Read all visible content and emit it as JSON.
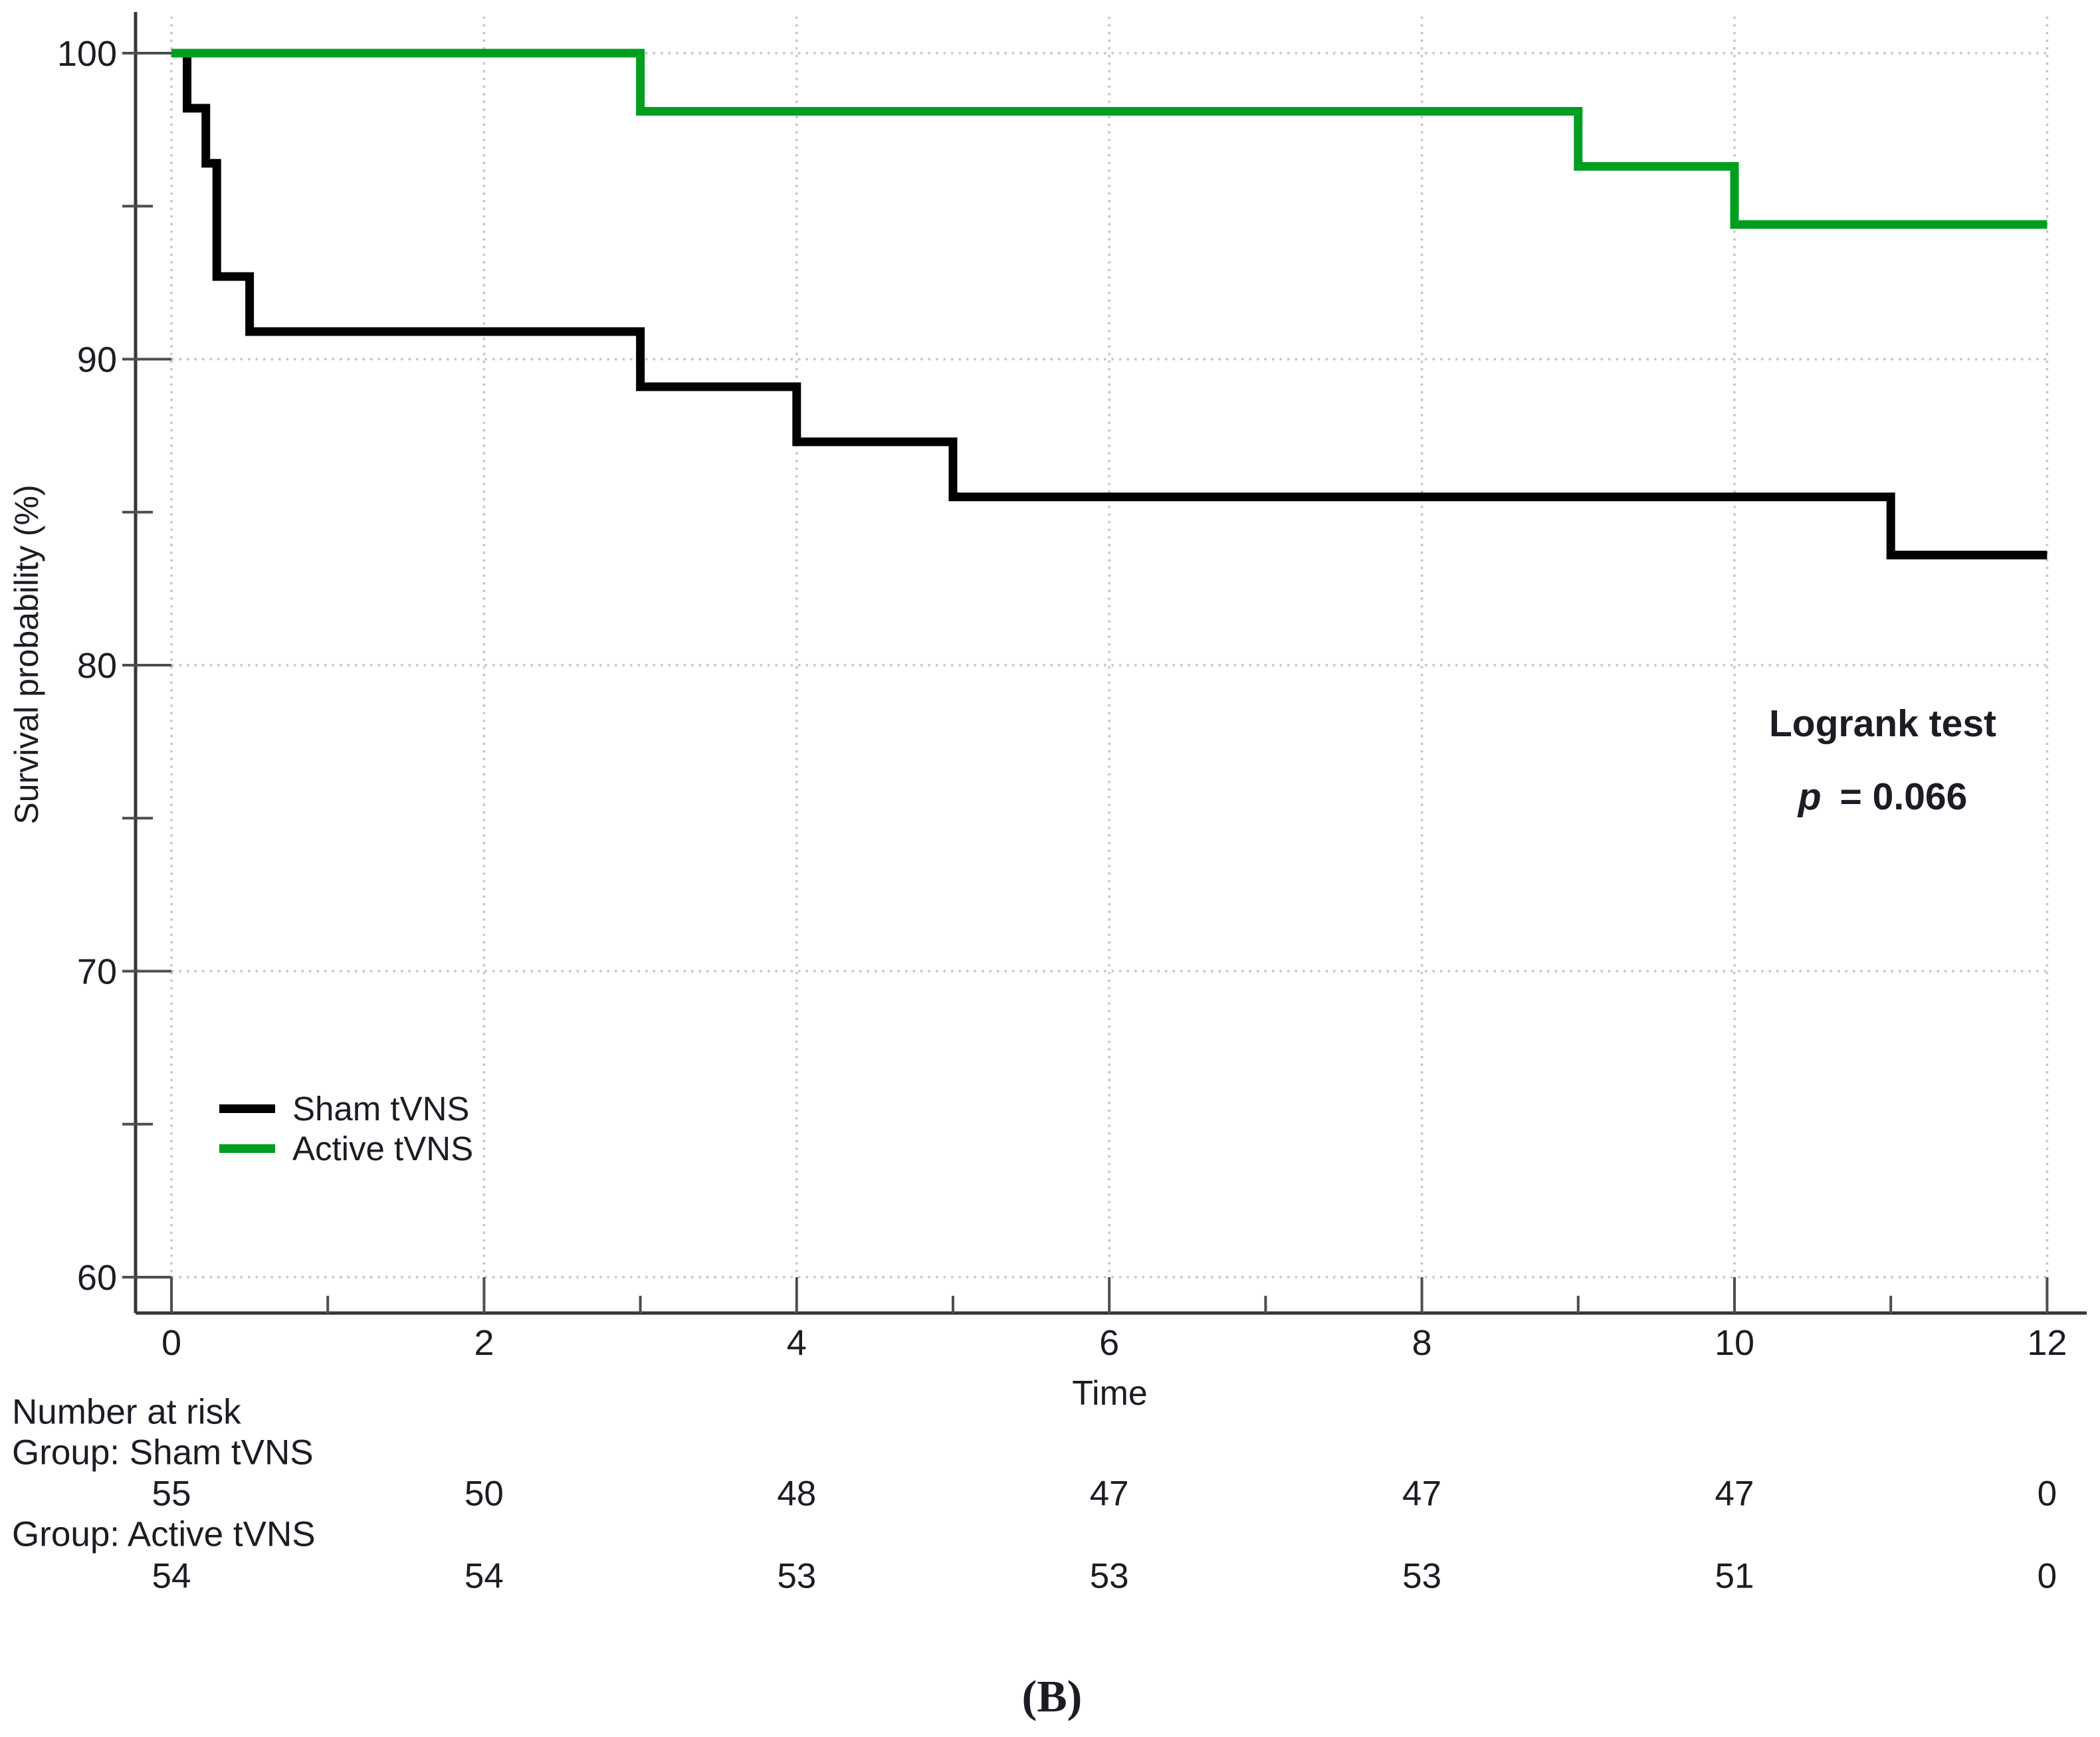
{
  "figure": {
    "caption": "(B)",
    "background_color": "#ffffff",
    "text_color": "#1c1c24"
  },
  "chart_data": {
    "type": "line",
    "subtype": "kaplan_meier_step",
    "title": "",
    "xlabel": "Time",
    "ylabel": "Survival probability (%)",
    "xlim": [
      0,
      12
    ],
    "ylim": [
      60,
      100
    ],
    "x_major_ticks": [
      0,
      2,
      4,
      6,
      8,
      10,
      12
    ],
    "x_minor_ticks": [
      1,
      3,
      5,
      7,
      9,
      11
    ],
    "y_major_ticks": [
      100,
      90,
      80,
      70,
      60
    ],
    "y_minor_ticks": [
      95,
      85,
      75,
      65
    ],
    "grid": {
      "style": "dotted",
      "color": "#c6c6c6",
      "horizontal_at": [
        100,
        90,
        80,
        70,
        60
      ],
      "vertical_at": [
        0,
        2,
        4,
        6,
        8,
        10,
        12
      ]
    },
    "axis_color": "#373737",
    "series": [
      {
        "name": "Sham tVNS",
        "color": "#000000",
        "steps": [
          [
            0,
            100
          ],
          [
            0.1,
            98.2
          ],
          [
            0.22,
            96.4
          ],
          [
            0.29,
            92.7
          ],
          [
            0.5,
            90.9
          ],
          [
            3,
            89.1
          ],
          [
            4,
            87.3
          ],
          [
            5,
            85.5
          ],
          [
            11,
            83.6
          ]
        ],
        "end_time": 12
      },
      {
        "name": "Active tVNS",
        "color": "#009e20",
        "steps": [
          [
            0,
            100
          ],
          [
            3,
            98.1
          ],
          [
            9,
            96.3
          ],
          [
            10,
            94.4
          ]
        ],
        "end_time": 12
      }
    ],
    "legend": {
      "position": "inside lower left",
      "entries": [
        "Sham tVNS",
        "Active tVNS"
      ]
    },
    "annotation": {
      "line1": "Logrank test",
      "p_symbol": "p",
      "p_value": "= 0.066"
    }
  },
  "at_risk": {
    "header": "Number at risk",
    "times": [
      0,
      2,
      4,
      6,
      8,
      10,
      12
    ],
    "groups": [
      {
        "label": "Group: Sham tVNS",
        "values": [
          "55",
          "50",
          "48",
          "47",
          "47",
          "47",
          "0"
        ]
      },
      {
        "label": "Group: Active tVNS",
        "values": [
          "54",
          "54",
          "53",
          "53",
          "53",
          "51",
          "0"
        ]
      }
    ]
  }
}
